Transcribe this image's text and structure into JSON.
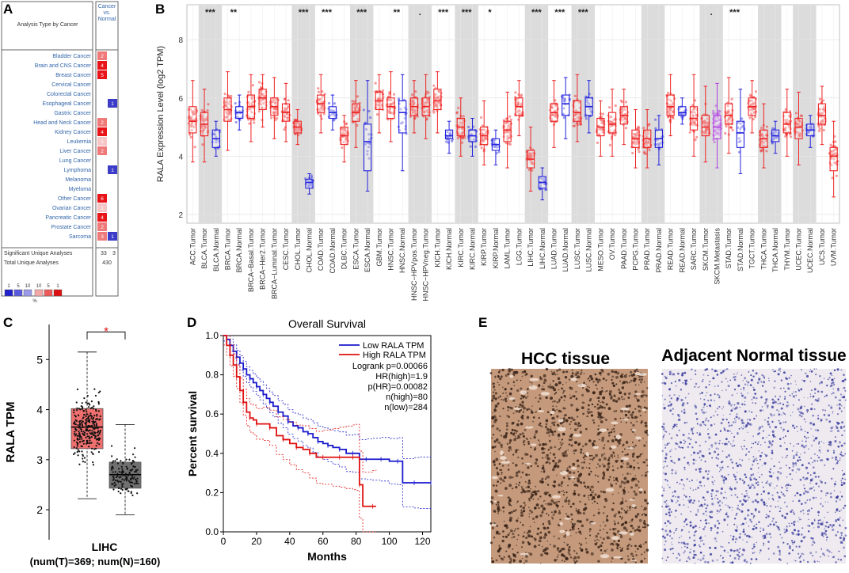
{
  "panels": {
    "a": "A",
    "b": "B",
    "c": "C",
    "d": "D",
    "e": "E"
  },
  "panelA": {
    "header_left": "Analysis Type by Cancer",
    "header_right": [
      "Cancer",
      "vs.",
      "Normal"
    ],
    "rows": [
      {
        "name": "Bladder Cancer",
        "up": "2",
        "down": ""
      },
      {
        "name": "Brain and CNS Cancer",
        "up": "4",
        "down": ""
      },
      {
        "name": "Breast Cancer",
        "up": "5",
        "down": ""
      },
      {
        "name": "Cervical Cancer",
        "up": "",
        "down": ""
      },
      {
        "name": "Colorectal Cancer",
        "up": "",
        "down": ""
      },
      {
        "name": "Esophageal Cancer",
        "up": "",
        "down": "1"
      },
      {
        "name": "Gastric Cancer",
        "up": "",
        "down": ""
      },
      {
        "name": "Head and Neck Cancer",
        "up": "2",
        "down": ""
      },
      {
        "name": "Kidney Cancer",
        "up": "4",
        "down": ""
      },
      {
        "name": "Leukemia",
        "up": "1",
        "down": ""
      },
      {
        "name": "Liver Cancer",
        "up": "2",
        "down": ""
      },
      {
        "name": "Lung Cancer",
        "up": "",
        "down": ""
      },
      {
        "name": "Lymphoma",
        "up": "",
        "down": "1"
      },
      {
        "name": "Melanoma",
        "up": "",
        "down": ""
      },
      {
        "name": "Myeloma",
        "up": "",
        "down": ""
      },
      {
        "name": "Other Cancer",
        "up": "6",
        "down": ""
      },
      {
        "name": "Ovarian Cancer",
        "up": "1",
        "down": ""
      },
      {
        "name": "Pancreatic Cancer",
        "up": "4",
        "down": ""
      },
      {
        "name": "Prostate Cancer",
        "up": "2",
        "down": ""
      },
      {
        "name": "Sarcoma",
        "up": "3",
        "down": "1"
      }
    ],
    "sig_label": "Significant Unique Analyses",
    "sig_up": "33",
    "sig_down": "3",
    "total_label": "Total Unique Analyses",
    "total": "430",
    "legend_numbers": [
      "1",
      "5",
      "10",
      "10",
      "5",
      "1"
    ],
    "legend_unit": "%",
    "colors": {
      "up_strong": "#e8141a",
      "up_mid": "#f07a7a",
      "up_light": "#f6c6c6",
      "down": "#3c3cc8",
      "link": "#3366aa"
    }
  },
  "chart_data": [
    {
      "type": "box",
      "panel": "B",
      "ylabel": "RALA Expression Level (log2 TPM)",
      "ylim": [
        1.7,
        9.2
      ],
      "yticks": [
        2,
        4,
        6,
        8
      ],
      "categories": [
        "ACC.Tumor",
        "BLCA.Tumor",
        "BLCA.Normal",
        "BRCA.Tumor",
        "BRCA.Normal",
        "BRCA−Basal.Tumor",
        "BRCA−Her2.Tumor",
        "BRCA−Luminal.Tumor",
        "CESC.Tumor",
        "CHOL.Tumor",
        "CHOL.Normal",
        "COAD.Tumor",
        "COAD.Normal",
        "DLBC.Tumor",
        "ESCA.Tumor",
        "ESCA.Normal",
        "GBM.Tumor",
        "HNSC.Tumor",
        "HNSC.Normal",
        "HNSC−HPVpos.Tumor",
        "HNSC−HPVneg.Tumor",
        "KICH.Tumor",
        "KICH.Normal",
        "KIRC.Tumor",
        "KIRC.Normal",
        "KIRP.Tumor",
        "KIRP.Normal",
        "LAML.Tumor",
        "LGG.Tumor",
        "LIHC.Tumor",
        "LIHC.Normal",
        "LUAD.Tumor",
        "LUAD.Normal",
        "LUSC.Tumor",
        "LUSC.Normal",
        "MESO.Tumor",
        "OV.Tumor",
        "PAAD.Tumor",
        "PCPG.Tumor",
        "PRAD.Tumor",
        "PRAD.Normal",
        "READ.Tumor",
        "READ.Normal",
        "SARC.Tumor",
        "SKCM.Tumor",
        "SKCM.Metastasis",
        "STAD.Tumor",
        "STAD.Normal",
        "TGCT.Tumor",
        "THCA.Tumor",
        "THCA.Normal",
        "THYM.Tumor",
        "UCEC.Tumor",
        "UCEC.Normal",
        "UCS.Tumor",
        "UVM.Tumor"
      ],
      "group": [
        "T",
        "T",
        "N",
        "T",
        "N",
        "T",
        "T",
        "T",
        "T",
        "T",
        "N",
        "T",
        "N",
        "T",
        "T",
        "N",
        "T",
        "T",
        "N",
        "T",
        "T",
        "T",
        "N",
        "T",
        "N",
        "T",
        "N",
        "T",
        "T",
        "T",
        "N",
        "T",
        "N",
        "T",
        "N",
        "T",
        "T",
        "T",
        "T",
        "T",
        "N",
        "T",
        "N",
        "T",
        "T",
        "M",
        "T",
        "N",
        "T",
        "T",
        "N",
        "T",
        "T",
        "N",
        "T",
        "T"
      ],
      "median": [
        5.2,
        5.1,
        4.6,
        5.6,
        5.5,
        5.7,
        6.0,
        5.7,
        5.5,
        5.0,
        3.1,
        5.8,
        5.5,
        4.7,
        5.5,
        4.5,
        5.9,
        5.7,
        5.5,
        5.7,
        5.7,
        5.9,
        4.7,
        5.0,
        4.7,
        4.7,
        4.4,
        4.9,
        5.7,
        3.9,
        3.1,
        5.5,
        5.8,
        5.5,
        5.7,
        5.0,
        5.1,
        5.4,
        4.6,
        4.6,
        4.6,
        5.7,
        5.5,
        5.3,
        5.0,
        5.0,
        5.4,
        4.8,
        5.7,
        4.6,
        4.7,
        5.1,
        5.0,
        4.9,
        5.4,
        4.0
      ],
      "q1": [
        4.8,
        4.7,
        4.3,
        5.2,
        5.3,
        5.3,
        5.6,
        5.4,
        5.2,
        4.8,
        2.9,
        5.5,
        5.3,
        4.4,
        5.2,
        3.5,
        5.6,
        5.3,
        4.8,
        5.4,
        5.4,
        5.6,
        4.6,
        4.7,
        4.5,
        4.4,
        4.2,
        4.5,
        5.4,
        3.6,
        2.9,
        5.2,
        5.4,
        5.2,
        5.4,
        4.7,
        4.8,
        5.1,
        4.3,
        4.3,
        4.3,
        5.4,
        5.4,
        4.9,
        4.7,
        4.6,
        5.1,
        4.3,
        5.4,
        4.3,
        4.5,
        4.8,
        4.6,
        4.7,
        5.1,
        3.5
      ],
      "q3": [
        5.7,
        5.5,
        4.9,
        6.0,
        5.7,
        6.1,
        6.3,
        6.0,
        5.8,
        5.2,
        3.2,
        6.1,
        5.7,
        5.0,
        5.8,
        5.1,
        6.2,
        6.0,
        5.9,
        6.0,
        6.0,
        6.3,
        4.9,
        5.3,
        4.9,
        5.0,
        4.6,
        5.2,
        6.0,
        4.2,
        3.3,
        5.8,
        6.1,
        5.9,
        6.0,
        5.3,
        5.5,
        5.7,
        4.9,
        4.9,
        4.9,
        6.1,
        5.7,
        5.7,
        5.4,
        5.4,
        5.8,
        5.2,
        6.0,
        4.9,
        4.9,
        5.5,
        5.3,
        5.1,
        5.8,
        4.3
      ],
      "whisker_low": [
        3.8,
        3.8,
        4.0,
        4.2,
        4.9,
        4.5,
        5.0,
        4.6,
        4.5,
        4.4,
        2.7,
        4.8,
        4.9,
        3.8,
        4.3,
        2.8,
        4.8,
        4.5,
        3.5,
        4.8,
        4.6,
        4.8,
        4.1,
        4.0,
        4.0,
        3.7,
        3.7,
        3.6,
        4.7,
        2.8,
        2.5,
        4.3,
        4.6,
        4.5,
        4.8,
        4.0,
        4.0,
        4.4,
        3.6,
        3.6,
        3.7,
        4.7,
        5.1,
        4.0,
        3.8,
        3.6,
        4.1,
        3.4,
        4.8,
        3.6,
        4.1,
        4.0,
        3.7,
        4.3,
        4.4,
        2.6
      ],
      "whisker_high": [
        6.6,
        6.3,
        5.2,
        6.9,
        6.1,
        6.8,
        6.8,
        6.7,
        6.5,
        5.6,
        3.4,
        6.8,
        6.1,
        5.4,
        6.6,
        6.6,
        6.8,
        6.9,
        6.8,
        6.6,
        6.8,
        6.9,
        5.2,
        6.0,
        5.3,
        5.9,
        4.9,
        6.2,
        6.6,
        5.0,
        3.6,
        6.6,
        6.7,
        6.8,
        6.6,
        5.9,
        6.3,
        6.3,
        5.6,
        5.6,
        5.4,
        6.8,
        6.0,
        6.8,
        6.4,
        6.5,
        6.7,
        6.3,
        6.6,
        5.8,
        5.2,
        6.3,
        6.2,
        5.4,
        6.4,
        5.2
      ],
      "signif": [
        {
          "cancer": "BLCA",
          "label": "***"
        },
        {
          "cancer": "BRCA",
          "label": "**"
        },
        {
          "cancer": "CHOL",
          "label": "***"
        },
        {
          "cancer": "COAD",
          "label": "***"
        },
        {
          "cancer": "ESCA",
          "label": "***"
        },
        {
          "cancer": "HNSC",
          "label": "**"
        },
        {
          "cancer": "HNSC-HPV",
          "label": "."
        },
        {
          "cancer": "KICH",
          "label": "***"
        },
        {
          "cancer": "KIRC",
          "label": "***"
        },
        {
          "cancer": "KIRP",
          "label": "*"
        },
        {
          "cancer": "LIHC",
          "label": "***"
        },
        {
          "cancer": "LUAD",
          "label": "***"
        },
        {
          "cancer": "LUSC",
          "label": "***"
        },
        {
          "cancer": "SKCM",
          "label": "."
        },
        {
          "cancer": "STAD",
          "label": "***"
        }
      ],
      "colors": {
        "tumor": "#ee2222",
        "normal": "#2222dd",
        "metastasis": "#b040e0",
        "shade": "#dcdcdc"
      }
    },
    {
      "type": "box",
      "panel": "C",
      "ylabel": "RALA TPM",
      "xlabel": "LIHC",
      "subtitle": "(num(T)=369; num(N)=160)",
      "ylim": [
        1.4,
        5.7
      ],
      "yticks": [
        2,
        3,
        4,
        5
      ],
      "series": [
        {
          "name": "Tumor",
          "median": 3.65,
          "q1": 3.22,
          "q3": 4.02,
          "whisker_low": 2.22,
          "whisker_high": 5.15,
          "color": "#f07070"
        },
        {
          "name": "Normal",
          "median": 2.7,
          "q1": 2.43,
          "q3": 2.95,
          "whisker_low": 1.9,
          "whisker_high": 3.7,
          "color": "#707070"
        }
      ],
      "signif_label": "*"
    },
    {
      "type": "line",
      "panel": "D",
      "title": "Overall Survival",
      "xlabel": "Months",
      "ylabel": "Percent survival",
      "xlim": [
        0,
        125
      ],
      "ylim": [
        0,
        1.0
      ],
      "xticks": [
        0,
        20,
        40,
        60,
        80,
        100,
        120
      ],
      "yticks": [
        0.0,
        0.2,
        0.4,
        0.6,
        0.8,
        1.0
      ],
      "legend": [
        "Low RALA TPM",
        "High RALA TPM"
      ],
      "stats": [
        "Logrank p=0.00066",
        "HR(high)=1.9",
        "p(HR)=0.00082",
        "n(high)=80",
        "n(low)=284"
      ],
      "series": [
        {
          "name": "Low RALA TPM",
          "color": "#1a1acc",
          "x": [
            0,
            2,
            4,
            6,
            8,
            10,
            12,
            14,
            16,
            18,
            20,
            22,
            24,
            26,
            28,
            30,
            33,
            36,
            39,
            42,
            45,
            48,
            51,
            54,
            57,
            60,
            63,
            66,
            70,
            74,
            78,
            82,
            86,
            90,
            95,
            100,
            105,
            108,
            115,
            118,
            125
          ],
          "y": [
            1.0,
            0.98,
            0.95,
            0.92,
            0.89,
            0.86,
            0.83,
            0.8,
            0.78,
            0.76,
            0.74,
            0.72,
            0.7,
            0.68,
            0.66,
            0.64,
            0.61,
            0.59,
            0.56,
            0.54,
            0.53,
            0.51,
            0.5,
            0.48,
            0.46,
            0.45,
            0.44,
            0.43,
            0.42,
            0.4,
            0.4,
            0.37,
            0.37,
            0.37,
            0.37,
            0.36,
            0.36,
            0.25,
            0.25,
            0.25,
            0.25
          ]
        },
        {
          "name": "High RALA TPM",
          "color": "#e01010",
          "x": [
            0,
            2,
            4,
            6,
            8,
            10,
            12,
            14,
            16,
            18,
            20,
            24,
            28,
            32,
            36,
            40,
            44,
            48,
            52,
            56,
            60,
            66,
            70,
            74,
            78,
            80,
            82,
            84,
            90,
            92
          ],
          "y": [
            1.0,
            0.95,
            0.9,
            0.85,
            0.79,
            0.72,
            0.66,
            0.61,
            0.58,
            0.57,
            0.55,
            0.55,
            0.53,
            0.49,
            0.47,
            0.45,
            0.43,
            0.42,
            0.4,
            0.38,
            0.38,
            0.38,
            0.38,
            0.38,
            0.38,
            0.38,
            0.24,
            0.13,
            0.13,
            0.13
          ]
        }
      ]
    }
  ],
  "panelE": {
    "left_label": "HCC tissue",
    "right_label": "Adjacent Normal tissue",
    "colors": {
      "hcc_bg": "#c59a7c",
      "hcc_dot": "#3a2418",
      "norm_bg": "#eeeaf0",
      "norm_dot": "#34369a"
    }
  }
}
